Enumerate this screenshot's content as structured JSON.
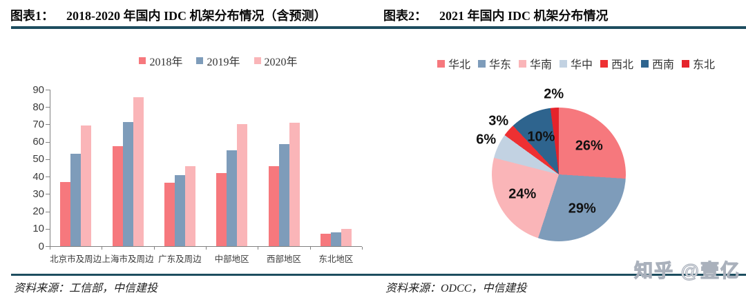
{
  "page": {
    "watermark": "知乎 @壹亿",
    "colors": {
      "rule": "#1d4d5f",
      "axis": "#808080"
    }
  },
  "fig1": {
    "label": "图表1：",
    "title": "2018-2020 年国内 IDC 机架分布情况（含预测）",
    "source": "资料来源：工信部，中信建投"
  },
  "fig2": {
    "label": "图表2：",
    "title": "2021 年国内 IDC 机架分布情况",
    "source": "资料来源：ODCC，中信建投"
  },
  "chart_data": [
    {
      "type": "bar",
      "title": "2018-2020 年国内 IDC 机架分布情况（含预测）",
      "categories": [
        "北京市及周边",
        "上海市及周边",
        "广东及周边",
        "中部地区",
        "西部地区",
        "东北地区"
      ],
      "series": [
        {
          "name": "2018年",
          "color": "#f6787d",
          "values": [
            37,
            57.5,
            36.5,
            42,
            46,
            7
          ]
        },
        {
          "name": "2019年",
          "color": "#7e9cba",
          "values": [
            53,
            71.5,
            41,
            55,
            58.5,
            8
          ]
        },
        {
          "name": "2020年",
          "color": "#fab5b8",
          "values": [
            69.5,
            85.5,
            46,
            70,
            71,
            10
          ]
        }
      ],
      "ylim": [
        0,
        90
      ],
      "ytick_step": 10,
      "yticks": [
        0,
        10,
        20,
        30,
        40,
        50,
        60,
        70,
        80,
        90
      ],
      "grid": false,
      "legend_position": "top"
    },
    {
      "type": "pie",
      "title": "2021 年国内 IDC 机架分布情况",
      "start_angle_deg": 0,
      "direction": "clockwise",
      "legend_position": "top",
      "slices": [
        {
          "name": "华北",
          "value": 26,
          "label": "26%",
          "color": "#f6787d",
          "label_position": "inside"
        },
        {
          "name": "华东",
          "value": 29,
          "label": "29%",
          "color": "#7e9cba",
          "label_position": "inside"
        },
        {
          "name": "华南",
          "value": 24,
          "label": "24%",
          "color": "#fab5b8",
          "label_position": "inside"
        },
        {
          "name": "华中",
          "value": 6,
          "label": "6%",
          "color": "#c2d2e2",
          "label_position": "outside"
        },
        {
          "name": "西北",
          "value": 3,
          "label": "3%",
          "color": "#ee3032",
          "label_position": "outside"
        },
        {
          "name": "西南",
          "value": 10,
          "label": "10%",
          "color": "#2e648e",
          "label_position": "inside"
        },
        {
          "name": "东北",
          "value": 2,
          "label": "2%",
          "color": "#e5232b",
          "label_position": "outside"
        }
      ]
    }
  ]
}
